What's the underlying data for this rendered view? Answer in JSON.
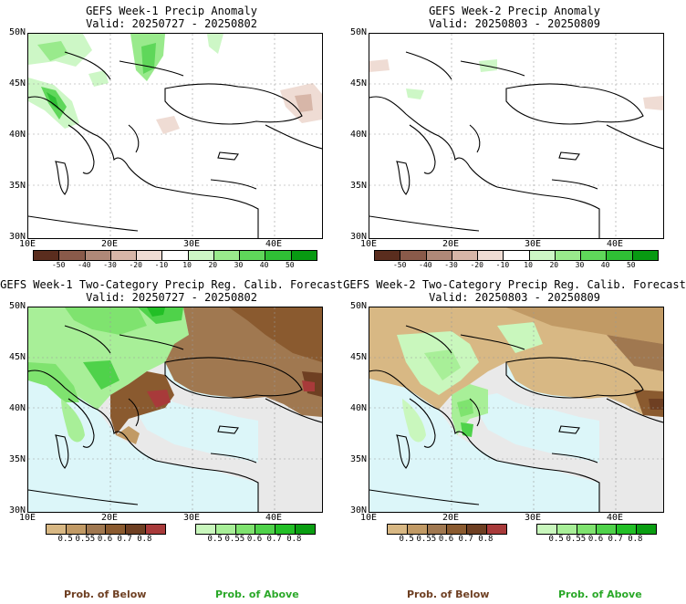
{
  "panels": {
    "p1": {
      "title": "GEFS Week-1 Precip Anomaly",
      "valid": "Valid: 20250727 - 20250802"
    },
    "p2": {
      "title": "GEFS Week-2 Precip Anomaly",
      "valid": "Valid: 20250803 - 20250809"
    },
    "p3": {
      "title": "GEFS Week-1 Two-Category Precip Reg. Calib. Forecast",
      "valid": "Valid: 20250727 - 20250802"
    },
    "p4": {
      "title": "GEFS Week-2 Two-Category Precip Reg. Calib. Forecast",
      "valid": "Valid: 20250803 - 20250809"
    }
  },
  "axes": {
    "lat_labels": [
      "50N",
      "45N",
      "40N",
      "35N",
      "30N"
    ],
    "lon_labels": [
      "10E",
      "20E",
      "30E",
      "40E"
    ]
  },
  "anomaly_colorbar": {
    "labels": [
      "-50",
      "-40",
      "-30",
      "-20",
      "-10",
      "10",
      "20",
      "30",
      "40",
      "50"
    ],
    "colors": [
      "#5a2d1e",
      "#8a5a4a",
      "#b08878",
      "#d7b6a8",
      "#efdcd4",
      "#ffffff",
      "#cdf7c6",
      "#99ea8c",
      "#5fd75a",
      "#2fbf35",
      "#089a12"
    ]
  },
  "prob_below_colorbar": {
    "labels": [
      "0.5",
      "0.55",
      "0.6",
      "0.7",
      "0.8"
    ],
    "colors": [
      "#d8b884",
      "#c19a65",
      "#a07850",
      "#8a5a2f",
      "#6e3f22",
      "#a83a3a"
    ]
  },
  "prob_above_colorbar": {
    "labels": [
      "0.5",
      "0.55",
      "0.6",
      "0.7",
      "0.8"
    ],
    "colors": [
      "#c9f7bd",
      "#a8ef98",
      "#7fe36f",
      "#4fd24a",
      "#22bf26",
      "#0a9e12"
    ]
  },
  "footer": {
    "below_label": "Prob. of Below",
    "above_label": "Prob. of Above",
    "below_color": "#6e3f22",
    "above_color": "#2aa828"
  }
}
